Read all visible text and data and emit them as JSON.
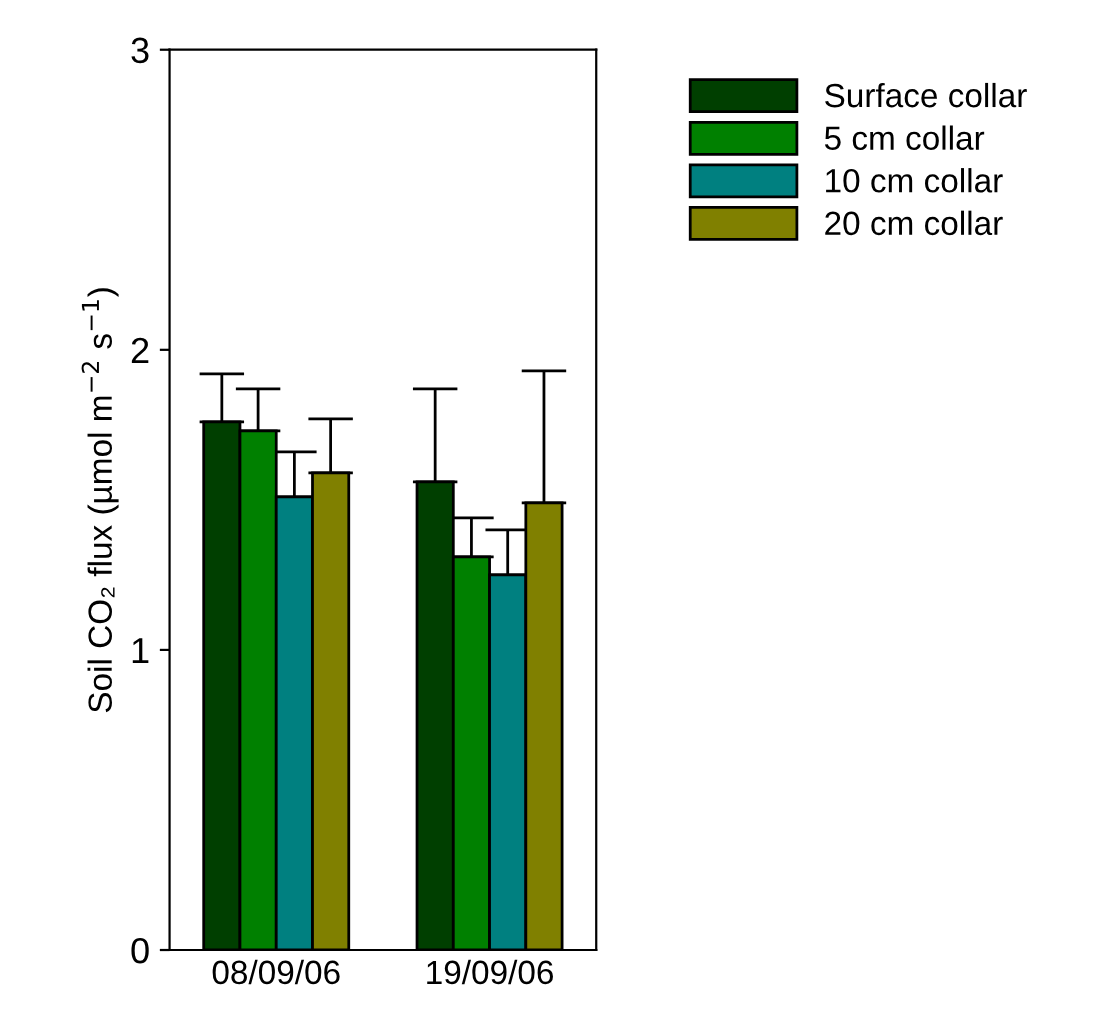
{
  "chart_data": {
    "type": "bar",
    "ylabel": "Soil CO₂ flux (µmol m$^{−2}$ s$^{−1}$)",
    "categories": [
      "08/09/06",
      "19/09/06"
    ],
    "series": [
      {
        "name": "Surface collar",
        "color": "#003f00",
        "values": [
          1.76,
          1.56
        ],
        "errors": [
          [
            1.76,
            1.92
          ],
          [
            1.56,
            1.87
          ]
        ]
      },
      {
        "name": "5 cm collar",
        "color": "#008000",
        "values": [
          1.73,
          1.31
        ],
        "errors": [
          [
            1.73,
            1.87
          ],
          [
            1.31,
            1.44
          ]
        ]
      },
      {
        "name": "10 cm collar",
        "color": "#008080",
        "values": [
          1.51,
          1.25
        ],
        "errors": [
          [
            1.51,
            1.66
          ],
          [
            1.25,
            1.4
          ]
        ]
      },
      {
        "name": "20 cm collar",
        "color": "#808000",
        "values": [
          1.59,
          1.49
        ],
        "errors": [
          [
            1.59,
            1.77
          ],
          [
            1.49,
            1.93
          ]
        ]
      }
    ],
    "ylim": [
      0,
      3
    ],
    "yticks": [
      0,
      1,
      2,
      3
    ],
    "grid": false,
    "legend": "top right"
  }
}
